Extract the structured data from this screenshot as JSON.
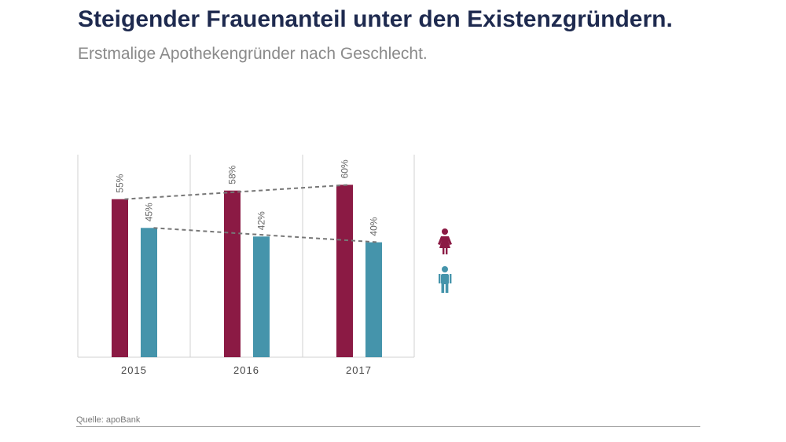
{
  "header": {
    "title": "Steigender Frauenanteil unter den Existenzgründern.",
    "subtitle": "Erstmalige Apothekengründer nach Geschlecht."
  },
  "footer": {
    "source": "Quelle: apoBank"
  },
  "colors": {
    "female": "#8b1a44",
    "male": "#4594ab",
    "trend": "#777777",
    "grid": "#d0d0d0"
  },
  "chart_data": {
    "type": "bar",
    "title": "Steigender Frauenanteil unter den Existenzgründern.",
    "subtitle": "Erstmalige Apothekengründer nach Geschlecht.",
    "categories": [
      "2015",
      "2016",
      "2017"
    ],
    "series": [
      {
        "name": "Frauen",
        "icon": "female-icon",
        "values": [
          55,
          58,
          60
        ],
        "labels": [
          "55%",
          "58%",
          "60%"
        ]
      },
      {
        "name": "Männer",
        "icon": "male-icon",
        "values": [
          45,
          42,
          40
        ],
        "labels": [
          "45%",
          "42%",
          "40%"
        ]
      }
    ],
    "ylim": [
      0,
      70
    ],
    "trend_lines": true,
    "legend_position": "right",
    "xlabel": "",
    "ylabel": ""
  }
}
